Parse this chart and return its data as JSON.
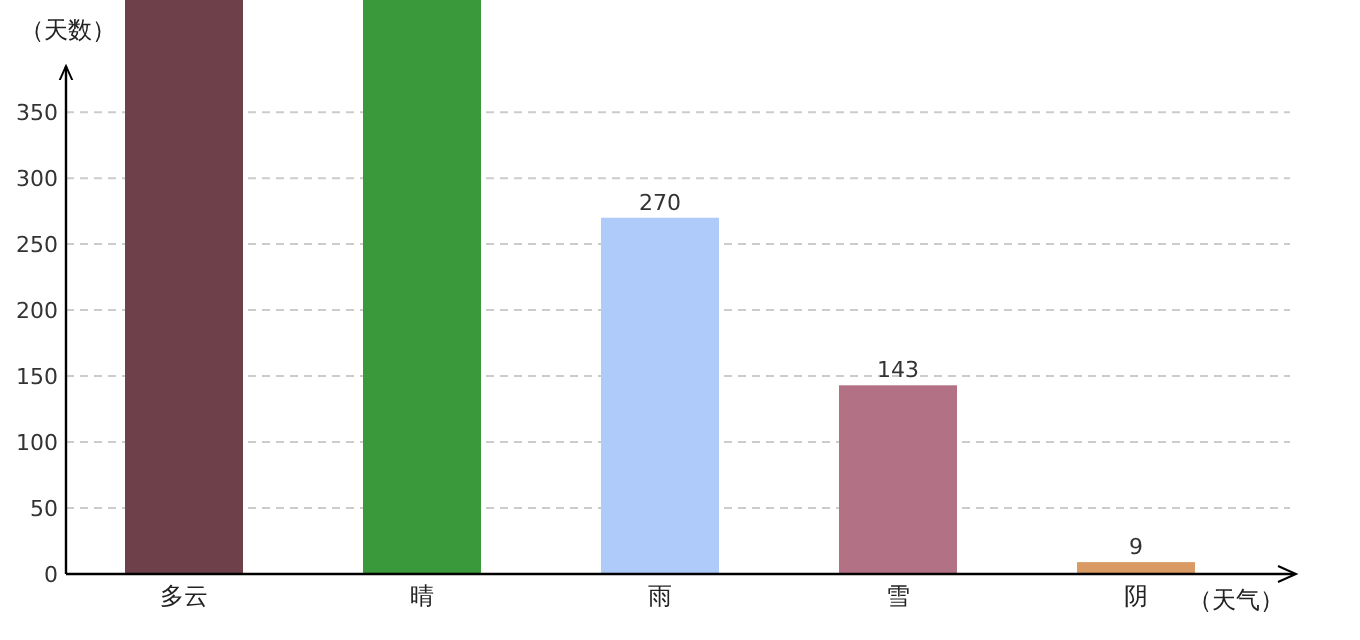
{
  "chart_data": {
    "type": "bar",
    "xlabel": "（天气）",
    "ylabel": "（天数）",
    "categories": [
      "多云",
      "晴",
      "雨",
      "雪",
      "阴"
    ],
    "values": [
      435,
      435,
      270,
      143,
      9
    ],
    "value_labels": [
      null,
      null,
      "270",
      "143",
      "9"
    ],
    "colors": [
      "#6e4049",
      "#3a9a3b",
      "#aecbfa",
      "#b27185",
      "#d99a64"
    ],
    "ylim": [
      0,
      435
    ],
    "yticks": [
      0,
      50,
      100,
      150,
      200,
      250,
      300,
      350
    ],
    "grid": "y"
  }
}
